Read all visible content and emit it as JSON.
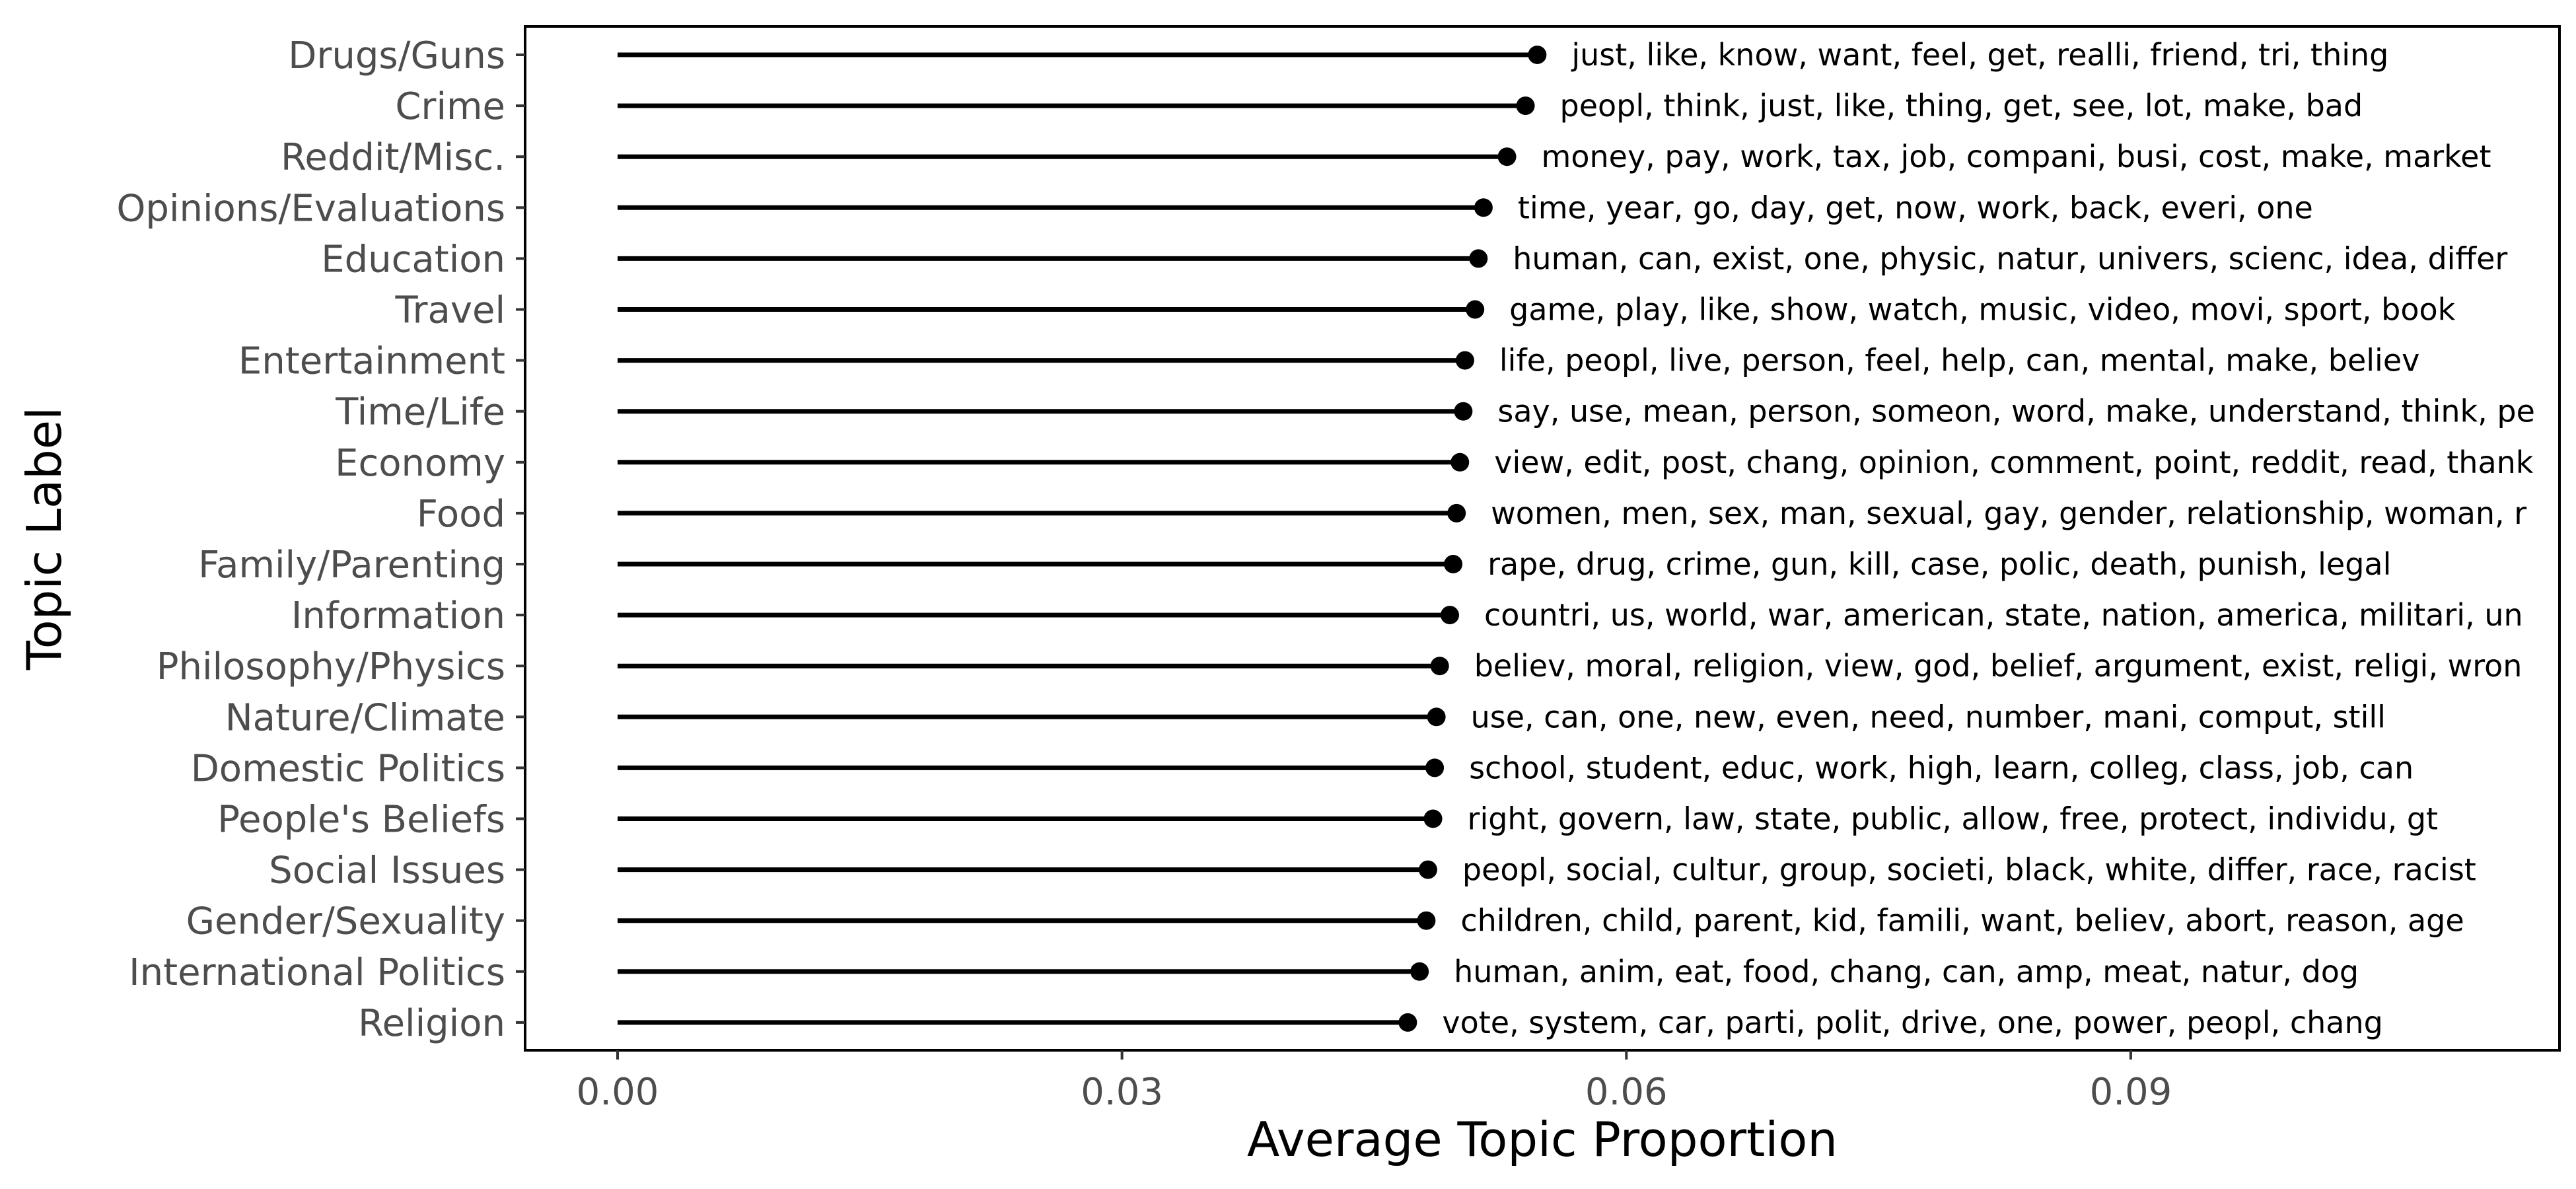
{
  "chart_data": {
    "type": "lollipop",
    "xlabel": "Average Topic Proportion",
    "ylabel": "Topic Label",
    "xlim": [
      -0.0055,
      0.1155
    ],
    "xticks": [
      0.0,
      0.03,
      0.06,
      0.09
    ],
    "xtick_labels": [
      "0.00",
      "0.03",
      "0.06",
      "0.09"
    ],
    "grid": false,
    "panel_border": true,
    "color": "#000000",
    "categories": [
      "Drugs/Guns",
      "Crime",
      "Reddit/Misc.",
      "Opinions/Evaluations",
      "Education",
      "Travel",
      "Entertainment",
      "Time/Life",
      "Economy",
      "Food",
      "Family/Parenting",
      "Information",
      "Philosophy/Physics",
      "Nature/Climate",
      "Domestic Politics",
      "People's Beliefs",
      "Social Issues",
      "Gender/Sexuality",
      "International Politics",
      "Religion"
    ],
    "values": [
      0.0547,
      0.054,
      0.0529,
      0.0515,
      0.0512,
      0.051,
      0.0504,
      0.0503,
      0.0501,
      0.0499,
      0.0497,
      0.0495,
      0.0489,
      0.0487,
      0.0486,
      0.0485,
      0.0482,
      0.0481,
      0.0477,
      0.047
    ],
    "terms": [
      "just, like, know, want, feel, get, realli, friend, tri, thing",
      "peopl, think, just, like, thing, get, see, lot, make, bad",
      "money, pay, work, tax, job, compani, busi, cost, make, market",
      "time, year, go, day, get, now, work, back, everi, one",
      "human, can, exist, one, physic, natur, univers, scienc, idea, differ",
      "game, play, like, show, watch, music, video, movi, sport, book",
      "life, peopl, live, person, feel, help, can, mental, make, believ",
      "say, use, mean, person, someon, word, make, understand, think, pe",
      "view, edit, post, chang, opinion, comment, point, reddit, read, thank",
      "women, men, sex, man, sexual, gay, gender, relationship, woman, r",
      "rape, drug, crime, gun, kill, case, polic, death, punish, legal",
      "countri, us, world, war, american, state, nation, america, militari, un",
      "believ, moral, religion, view, god, belief, argument, exist, religi, wron",
      "use, can, one, new, even, need, number, mani, comput, still",
      "school, student, educ, work, high, learn, colleg, class, job, can",
      "right, govern, law, state, public, allow, free, protect, individu, gt",
      "peopl, social, cultur, group, societi, black, white, differ, race, racist",
      "children, child, parent, kid, famili, want, believ, abort, reason, age",
      "human, anim, eat, food, chang, can, amp, meat, natur, dog",
      "vote, system, car, parti, polit, drive, one, power, peopl, chang"
    ]
  }
}
